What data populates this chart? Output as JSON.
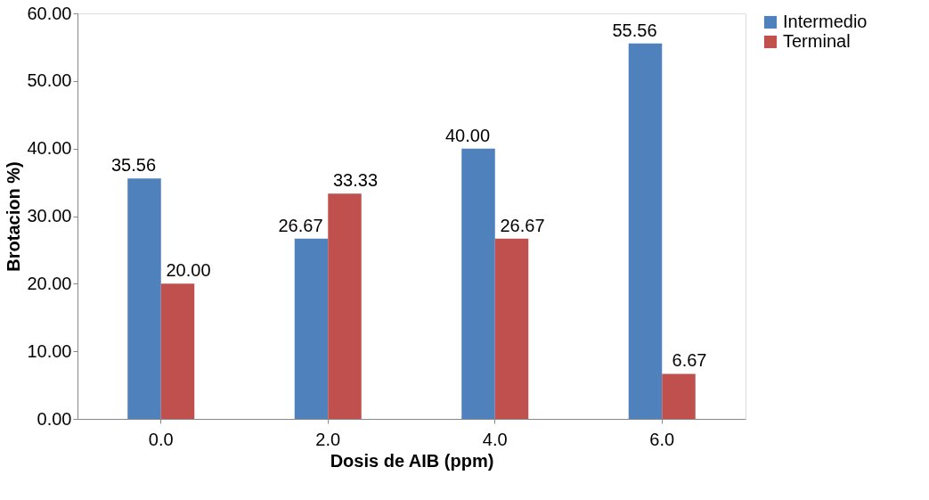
{
  "chart_data": {
    "type": "bar",
    "xlabel": "Dosis de AIB (ppm)",
    "ylabel": "Brotacion %)",
    "categories": [
      "0.0",
      "2.0",
      "4.0",
      "6.0"
    ],
    "series": [
      {
        "name": "Intermedio",
        "color": "#4f81bd",
        "values": [
          35.56,
          26.67,
          40.0,
          55.56
        ],
        "value_labels": [
          "35.56",
          "26.67",
          "40.00",
          "55.56"
        ]
      },
      {
        "name": "Terminal",
        "color": "#c0504d",
        "values": [
          20.0,
          33.33,
          26.67,
          6.67
        ],
        "value_labels": [
          "20.00",
          "33.33",
          "26.67",
          "6.67"
        ]
      }
    ],
    "ylim": [
      0,
      60
    ],
    "yticks": [
      {
        "value": 0,
        "label": "0.00"
      },
      {
        "value": 10,
        "label": "10.00"
      },
      {
        "value": 20,
        "label": "20.00"
      },
      {
        "value": 30,
        "label": "30.00"
      },
      {
        "value": 40,
        "label": "40.00"
      },
      {
        "value": 50,
        "label": "50.00"
      },
      {
        "value": 60,
        "label": "60.00"
      }
    ],
    "grid": false,
    "legend": "right"
  }
}
